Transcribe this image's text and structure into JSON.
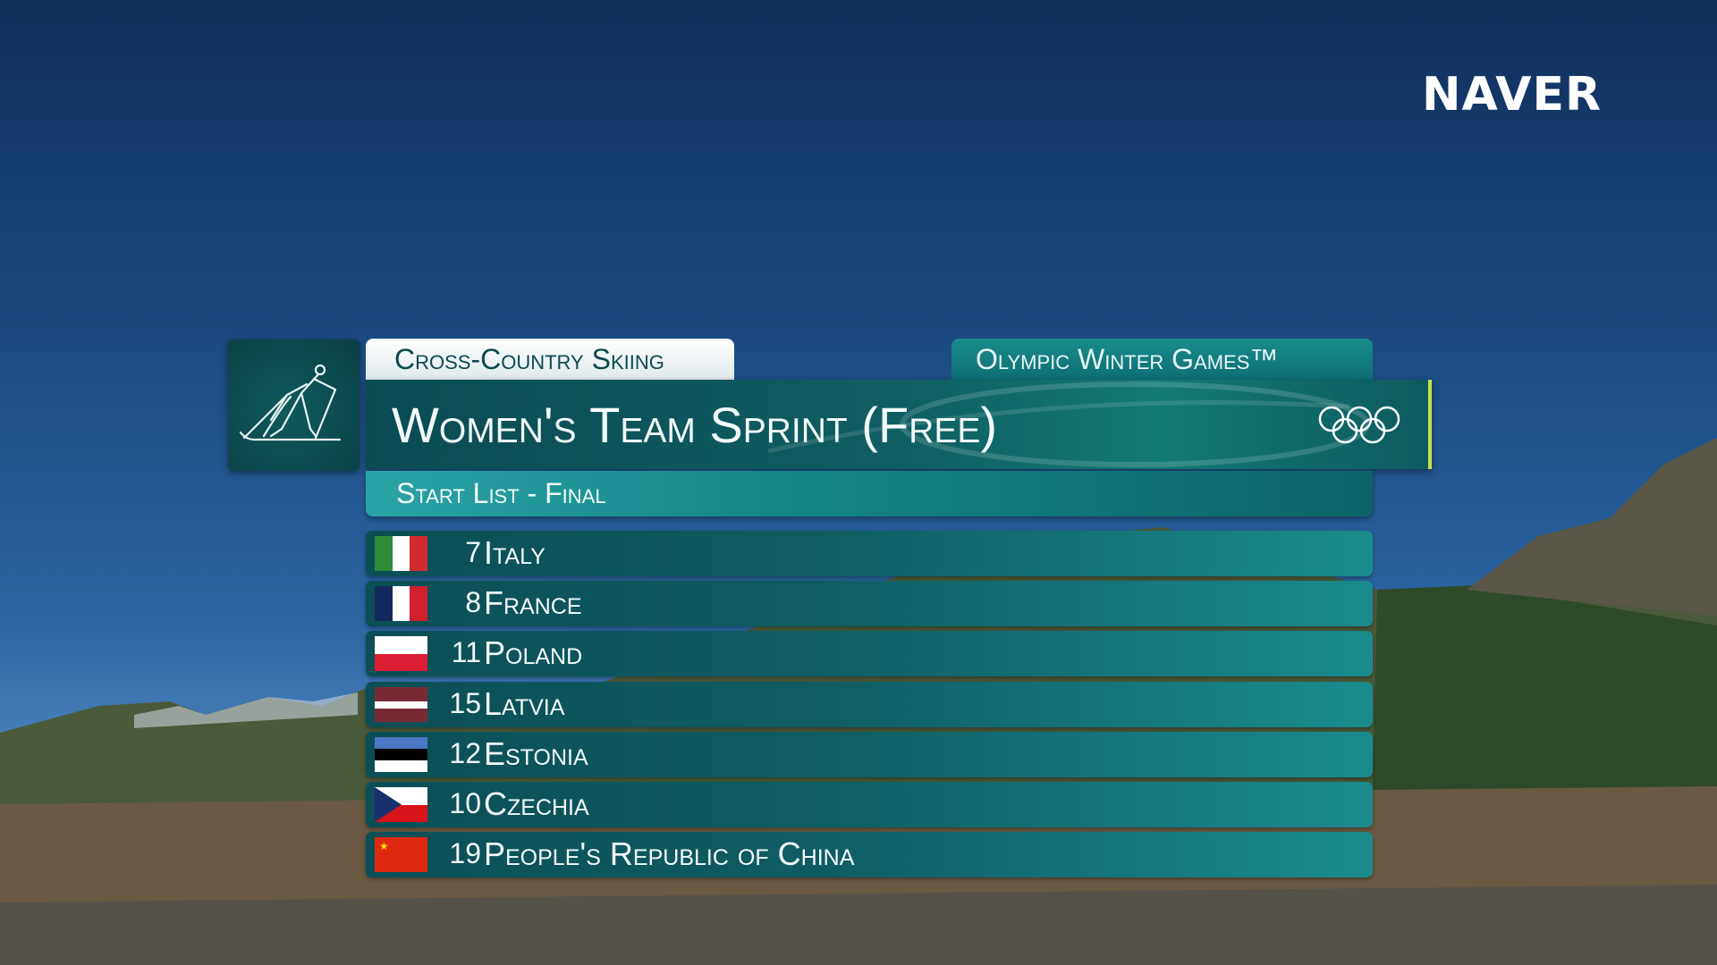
{
  "broadcaster": "NAVER",
  "sport": "Cross-Country Skiing",
  "games": "Olympic Winter Games™",
  "event": "Women's Team Sprint (Free)",
  "phase": "Start List - Final",
  "pictogram_icon": "cross-country-skier-icon",
  "rings_icon": "olympic-rings-icon",
  "colors": {
    "teal_dark": "#0b4e55",
    "teal_light": "#1a8b8c",
    "accent": "#c8e04a"
  },
  "start_list": [
    {
      "bib": "7",
      "country": "Italy",
      "flag": "italy"
    },
    {
      "bib": "8",
      "country": "France",
      "flag": "france"
    },
    {
      "bib": "11",
      "country": "Poland",
      "flag": "poland"
    },
    {
      "bib": "15",
      "country": "Latvia",
      "flag": "latvia"
    },
    {
      "bib": "12",
      "country": "Estonia",
      "flag": "estonia"
    },
    {
      "bib": "10",
      "country": "Czechia",
      "flag": "czechia"
    },
    {
      "bib": "19",
      "country": "People's Republic of China",
      "flag": "china"
    }
  ]
}
